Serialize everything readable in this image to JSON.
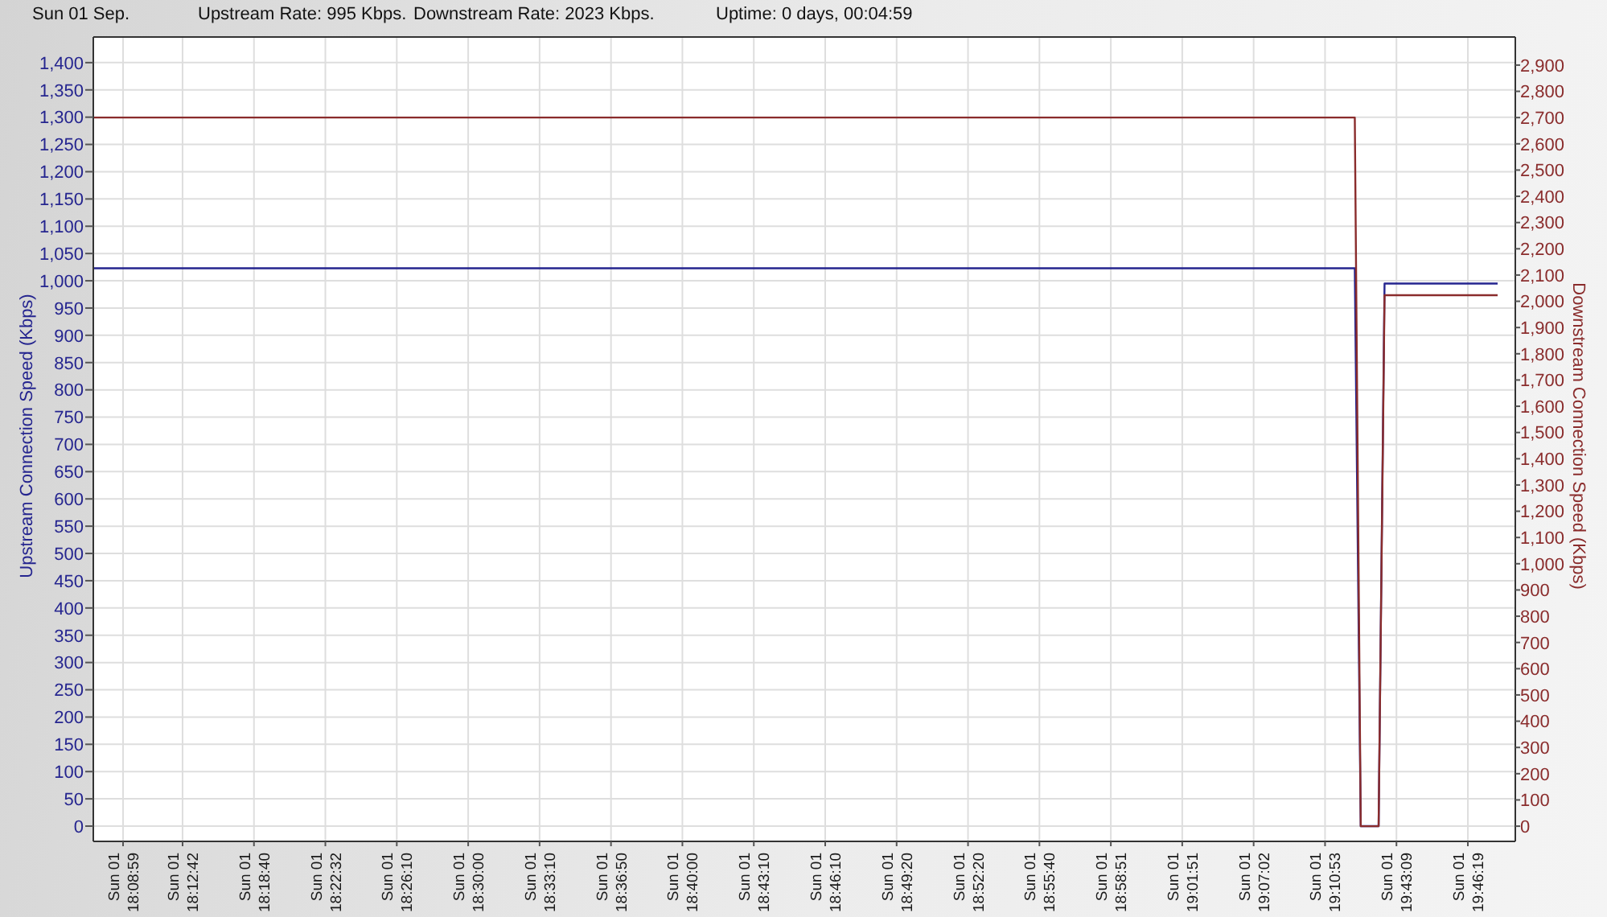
{
  "chart_data": {
    "type": "line",
    "title": "Sun 01 Sep.",
    "annotations": [
      "Upstream Rate: 995 Kbps.",
      "Downstream Rate: 2023 Kbps.",
      "Uptime: 0 days, 00:04:59"
    ],
    "ylabel": "Upstream Connection Speed (Kbps)",
    "y2label": "Downstream Connection Speed (Kbps)",
    "categories": [
      null,
      null,
      null,
      null,
      null,
      "Sun 01 18:08:59",
      null,
      null,
      null,
      null,
      null,
      null,
      null,
      null,
      null,
      "Sun 01 18:12:42",
      null,
      null,
      null,
      null,
      null,
      null,
      null,
      null,
      null,
      null,
      null,
      "Sun 01 18:18:40",
      null,
      null,
      null,
      null,
      null,
      null,
      null,
      null,
      null,
      null,
      null,
      "Sun 01 18:22:32",
      null,
      null,
      null,
      null,
      null,
      null,
      null,
      null,
      null,
      null,
      null,
      "Sun 01 18:26:10",
      null,
      null,
      null,
      null,
      null,
      null,
      null,
      null,
      null,
      null,
      null,
      "Sun 01 18:30:00",
      null,
      null,
      null,
      null,
      null,
      null,
      null,
      null,
      null,
      null,
      null,
      "Sun 01 18:33:10",
      null,
      null,
      null,
      null,
      null,
      null,
      null,
      null,
      null,
      null,
      null,
      "Sun 01 18:36:50",
      null,
      null,
      null,
      null,
      null,
      null,
      null,
      null,
      null,
      null,
      null,
      "Sun 01 18:40:00",
      null,
      null,
      null,
      null,
      null,
      null,
      null,
      null,
      null,
      null,
      null,
      "Sun 01 18:43:10",
      null,
      null,
      null,
      null,
      null,
      null,
      null,
      null,
      null,
      null,
      null,
      "Sun 01 18:46:10",
      null,
      null,
      null,
      null,
      null,
      null,
      null,
      null,
      null,
      null,
      null,
      "Sun 01 18:49:20",
      null,
      null,
      null,
      null,
      null,
      null,
      null,
      null,
      null,
      null,
      null,
      "Sun 01 18:52:20",
      null,
      null,
      null,
      null,
      null,
      null,
      null,
      null,
      null,
      null,
      null,
      "Sun 01 18:55:40",
      null,
      null,
      null,
      null,
      null,
      null,
      null,
      null,
      null,
      null,
      null,
      "Sun 01 18:58:51",
      null,
      null,
      null,
      null,
      null,
      null,
      null,
      null,
      null,
      null,
      null,
      "Sun 01 19:01:51",
      null,
      null,
      null,
      null,
      null,
      null,
      null,
      null,
      null,
      null,
      null,
      "Sun 01 19:07:02",
      null,
      null,
      null,
      null,
      null,
      null,
      null,
      null,
      null,
      null,
      null,
      "Sun 01 19:10:53",
      null,
      null,
      null,
      null,
      null,
      null,
      null,
      null,
      null,
      null,
      null,
      "Sun 01 19:43:09",
      null,
      null,
      null,
      null,
      null,
      null,
      null,
      null,
      null,
      null,
      null,
      "Sun 01 19:46:19",
      null,
      null,
      null,
      null,
      null
    ],
    "series": [
      {
        "color": "#25258f",
        "values": [
          1023,
          1023,
          1023,
          1023,
          1023,
          1023,
          1023,
          1023,
          1023,
          1023,
          1023,
          1023,
          1023,
          1023,
          1023,
          1023,
          1023,
          1023,
          1023,
          1023,
          1023,
          1023,
          1023,
          1023,
          1023,
          1023,
          1023,
          1023,
          1023,
          1023,
          1023,
          1023,
          1023,
          1023,
          1023,
          1023,
          1023,
          1023,
          1023,
          1023,
          1023,
          1023,
          1023,
          1023,
          1023,
          1023,
          1023,
          1023,
          1023,
          1023,
          1023,
          1023,
          1023,
          1023,
          1023,
          1023,
          1023,
          1023,
          1023,
          1023,
          1023,
          1023,
          1023,
          1023,
          1023,
          1023,
          1023,
          1023,
          1023,
          1023,
          1023,
          1023,
          1023,
          1023,
          1023,
          1023,
          1023,
          1023,
          1023,
          1023,
          1023,
          1023,
          1023,
          1023,
          1023,
          1023,
          1023,
          1023,
          1023,
          1023,
          1023,
          1023,
          1023,
          1023,
          1023,
          1023,
          1023,
          1023,
          1023,
          1023,
          1023,
          1023,
          1023,
          1023,
          1023,
          1023,
          1023,
          1023,
          1023,
          1023,
          1023,
          1023,
          1023,
          1023,
          1023,
          1023,
          1023,
          1023,
          1023,
          1023,
          1023,
          1023,
          1023,
          1023,
          1023,
          1023,
          1023,
          1023,
          1023,
          1023,
          1023,
          1023,
          1023,
          1023,
          1023,
          1023,
          1023,
          1023,
          1023,
          1023,
          1023,
          1023,
          1023,
          1023,
          1023,
          1023,
          1023,
          1023,
          1023,
          1023,
          1023,
          1023,
          1023,
          1023,
          1023,
          1023,
          1023,
          1023,
          1023,
          1023,
          1023,
          1023,
          1023,
          1023,
          1023,
          1023,
          1023,
          1023,
          1023,
          1023,
          1023,
          1023,
          1023,
          1023,
          1023,
          1023,
          1023,
          1023,
          1023,
          1023,
          1023,
          1023,
          1023,
          1023,
          1023,
          1023,
          1023,
          1023,
          1023,
          1023,
          1023,
          1023,
          1023,
          1023,
          1023,
          1023,
          1023,
          1023,
          1023,
          1023,
          1023,
          1023,
          1023,
          1023,
          1023,
          1023,
          1023,
          1023,
          1023,
          1023,
          1023,
          1023,
          1023,
          0,
          0,
          0,
          0,
          995,
          995,
          995,
          995,
          995,
          995,
          995,
          995,
          995,
          995,
          995,
          995,
          995,
          995,
          995,
          995,
          995,
          995,
          995,
          995
        ]
      },
      {
        "color": "#8a2c2c",
        "axis": "y2",
        "values": [
          2700,
          2700,
          2700,
          2700,
          2700,
          2700,
          2700,
          2700,
          2700,
          2700,
          2700,
          2700,
          2700,
          2700,
          2700,
          2700,
          2700,
          2700,
          2700,
          2700,
          2700,
          2700,
          2700,
          2700,
          2700,
          2700,
          2700,
          2700,
          2700,
          2700,
          2700,
          2700,
          2700,
          2700,
          2700,
          2700,
          2700,
          2700,
          2700,
          2700,
          2700,
          2700,
          2700,
          2700,
          2700,
          2700,
          2700,
          2700,
          2700,
          2700,
          2700,
          2700,
          2700,
          2700,
          2700,
          2700,
          2700,
          2700,
          2700,
          2700,
          2700,
          2700,
          2700,
          2700,
          2700,
          2700,
          2700,
          2700,
          2700,
          2700,
          2700,
          2700,
          2700,
          2700,
          2700,
          2700,
          2700,
          2700,
          2700,
          2700,
          2700,
          2700,
          2700,
          2700,
          2700,
          2700,
          2700,
          2700,
          2700,
          2700,
          2700,
          2700,
          2700,
          2700,
          2700,
          2700,
          2700,
          2700,
          2700,
          2700,
          2700,
          2700,
          2700,
          2700,
          2700,
          2700,
          2700,
          2700,
          2700,
          2700,
          2700,
          2700,
          2700,
          2700,
          2700,
          2700,
          2700,
          2700,
          2700,
          2700,
          2700,
          2700,
          2700,
          2700,
          2700,
          2700,
          2700,
          2700,
          2700,
          2700,
          2700,
          2700,
          2700,
          2700,
          2700,
          2700,
          2700,
          2700,
          2700,
          2700,
          2700,
          2700,
          2700,
          2700,
          2700,
          2700,
          2700,
          2700,
          2700,
          2700,
          2700,
          2700,
          2700,
          2700,
          2700,
          2700,
          2700,
          2700,
          2700,
          2700,
          2700,
          2700,
          2700,
          2700,
          2700,
          2700,
          2700,
          2700,
          2700,
          2700,
          2700,
          2700,
          2700,
          2700,
          2700,
          2700,
          2700,
          2700,
          2700,
          2700,
          2700,
          2700,
          2700,
          2700,
          2700,
          2700,
          2700,
          2700,
          2700,
          2700,
          2700,
          2700,
          2700,
          2700,
          2700,
          2700,
          2700,
          2700,
          2700,
          2700,
          2700,
          2700,
          2700,
          2700,
          2700,
          2700,
          2700,
          2700,
          2700,
          2700,
          2700,
          2700,
          2700,
          0,
          0,
          0,
          0,
          2023,
          2023,
          2023,
          2023,
          2023,
          2023,
          2023,
          2023,
          2023,
          2023,
          2023,
          2023,
          2023,
          2023,
          2023,
          2023,
          2023,
          2023,
          2023,
          2023
        ]
      }
    ],
    "ylim": [
      -28,
      1447
    ],
    "yticks": [
      0,
      50,
      100,
      150,
      200,
      250,
      300,
      350,
      400,
      450,
      500,
      550,
      600,
      650,
      700,
      750,
      800,
      850,
      900,
      950,
      {
        "value": 1000,
        "label": "1,000"
      },
      {
        "value": 1050,
        "label": "1,050"
      },
      {
        "value": 1100,
        "label": "1,100"
      },
      {
        "value": 1150,
        "label": "1,150"
      },
      {
        "value": 1200,
        "label": "1,200"
      },
      {
        "value": 1250,
        "label": "1,250"
      },
      {
        "value": 1300,
        "label": "1,300"
      },
      {
        "value": 1350,
        "label": "1,350"
      },
      {
        "value": 1400,
        "label": "1,400"
      }
    ],
    "y2lim": [
      -58,
      3007
    ],
    "y2ticks": [
      0,
      100,
      200,
      300,
      400,
      500,
      600,
      700,
      800,
      900,
      {
        "value": 1000,
        "label": "1,000"
      },
      {
        "value": 1100,
        "label": "1,100"
      },
      {
        "value": 1200,
        "label": "1,200"
      },
      {
        "value": 1300,
        "label": "1,300"
      },
      {
        "value": 1400,
        "label": "1,400"
      },
      {
        "value": 1500,
        "label": "1,500"
      },
      {
        "value": 1600,
        "label": "1,600"
      },
      {
        "value": 1700,
        "label": "1,700"
      },
      {
        "value": 1800,
        "label": "1,800"
      },
      {
        "value": 1900,
        "label": "1,900"
      },
      {
        "value": 2000,
        "label": "2,000"
      },
      {
        "value": 2100,
        "label": "2,100"
      },
      {
        "value": 2200,
        "label": "2,200"
      },
      {
        "value": 2300,
        "label": "2,300"
      },
      {
        "value": 2400,
        "label": "2,400"
      },
      {
        "value": 2500,
        "label": "2,500"
      },
      {
        "value": 2600,
        "label": "2,600"
      },
      {
        "value": 2700,
        "label": "2,700"
      },
      {
        "value": 2800,
        "label": "2,800"
      },
      {
        "value": 2900,
        "label": "2,900"
      }
    ],
    "grid": true
  }
}
